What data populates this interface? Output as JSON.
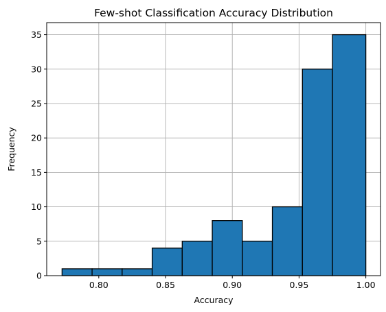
{
  "chart_data": {
    "type": "bar",
    "title": "Few-shot Classification Accuracy Distribution",
    "xlabel": "Accuracy",
    "ylabel": "Frequency",
    "bin_edges": [
      0.7725,
      0.795,
      0.8175,
      0.84,
      0.8625,
      0.885,
      0.9075,
      0.93,
      0.9525,
      0.975,
      1.0
    ],
    "values": [
      1,
      1,
      1,
      4,
      5,
      8,
      5,
      10,
      30,
      35
    ],
    "xlim": [
      0.761,
      1.011
    ],
    "ylim": [
      0,
      36.75
    ],
    "xticks": [
      0.8,
      0.85,
      0.9,
      0.95,
      1.0
    ],
    "xtick_labels": [
      "0.80",
      "0.85",
      "0.90",
      "0.95",
      "1.00"
    ],
    "yticks": [
      0,
      5,
      10,
      15,
      20,
      25,
      30,
      35
    ],
    "ytick_labels": [
      "0",
      "5",
      "10",
      "15",
      "20",
      "25",
      "30",
      "35"
    ],
    "grid": true,
    "bar_color": "#1f77b4",
    "edge_color": "#000000"
  }
}
